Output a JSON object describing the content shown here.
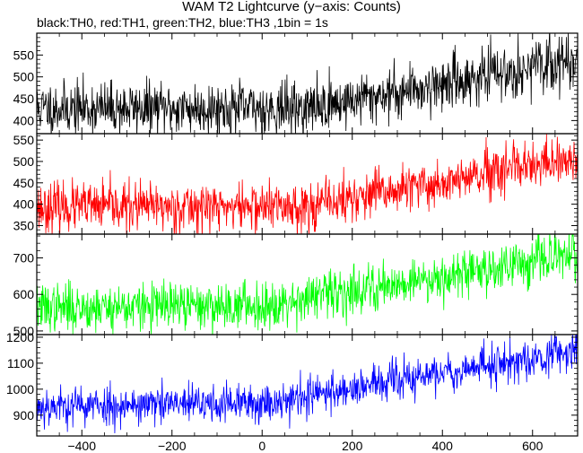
{
  "chart_data": {
    "type": "line",
    "title": "WAM T2 Lightcurve (y−axis: Counts)",
    "subtitle": "black:TH0, red:TH1, green:TH2, blue:TH3 ,1bin = 1s",
    "x_ticks": [
      -400,
      -200,
      0,
      200,
      400,
      600
    ],
    "xlim": [
      -500,
      700
    ],
    "panels": [
      {
        "id": "TH0",
        "color": "#000000",
        "ylim": [
          370,
          600
        ],
        "y_ticks": [
          400,
          450,
          500,
          550
        ],
        "trend": {
          "x": [
            -500,
            100,
            700
          ],
          "y": [
            428,
            428,
            540
          ]
        },
        "noise": 30,
        "seed": 11
      },
      {
        "id": "TH1",
        "color": "#ff0000",
        "ylim": [
          330,
          565
        ],
        "y_ticks": [
          350,
          400,
          450,
          500,
          550
        ],
        "trend": {
          "x": [
            -500,
            100,
            700
          ],
          "y": [
            393,
            395,
            505
          ]
        },
        "noise": 28,
        "seed": 23
      },
      {
        "id": "TH2",
        "color": "#00ff00",
        "ylim": [
          490,
          765
        ],
        "y_ticks": [
          500,
          600,
          700
        ],
        "trend": {
          "x": [
            -500,
            0,
            700
          ],
          "y": [
            563,
            570,
            710
          ]
        },
        "noise": 32,
        "seed": 37
      },
      {
        "id": "TH3",
        "color": "#0000ff",
        "ylim": [
          820,
          1210
        ],
        "y_ticks": [
          900,
          1000,
          1100,
          1200
        ],
        "trend": {
          "x": [
            -500,
            0,
            700
          ],
          "y": [
            935,
            945,
            1150
          ]
        },
        "noise": 38,
        "seed": 53
      }
    ]
  }
}
